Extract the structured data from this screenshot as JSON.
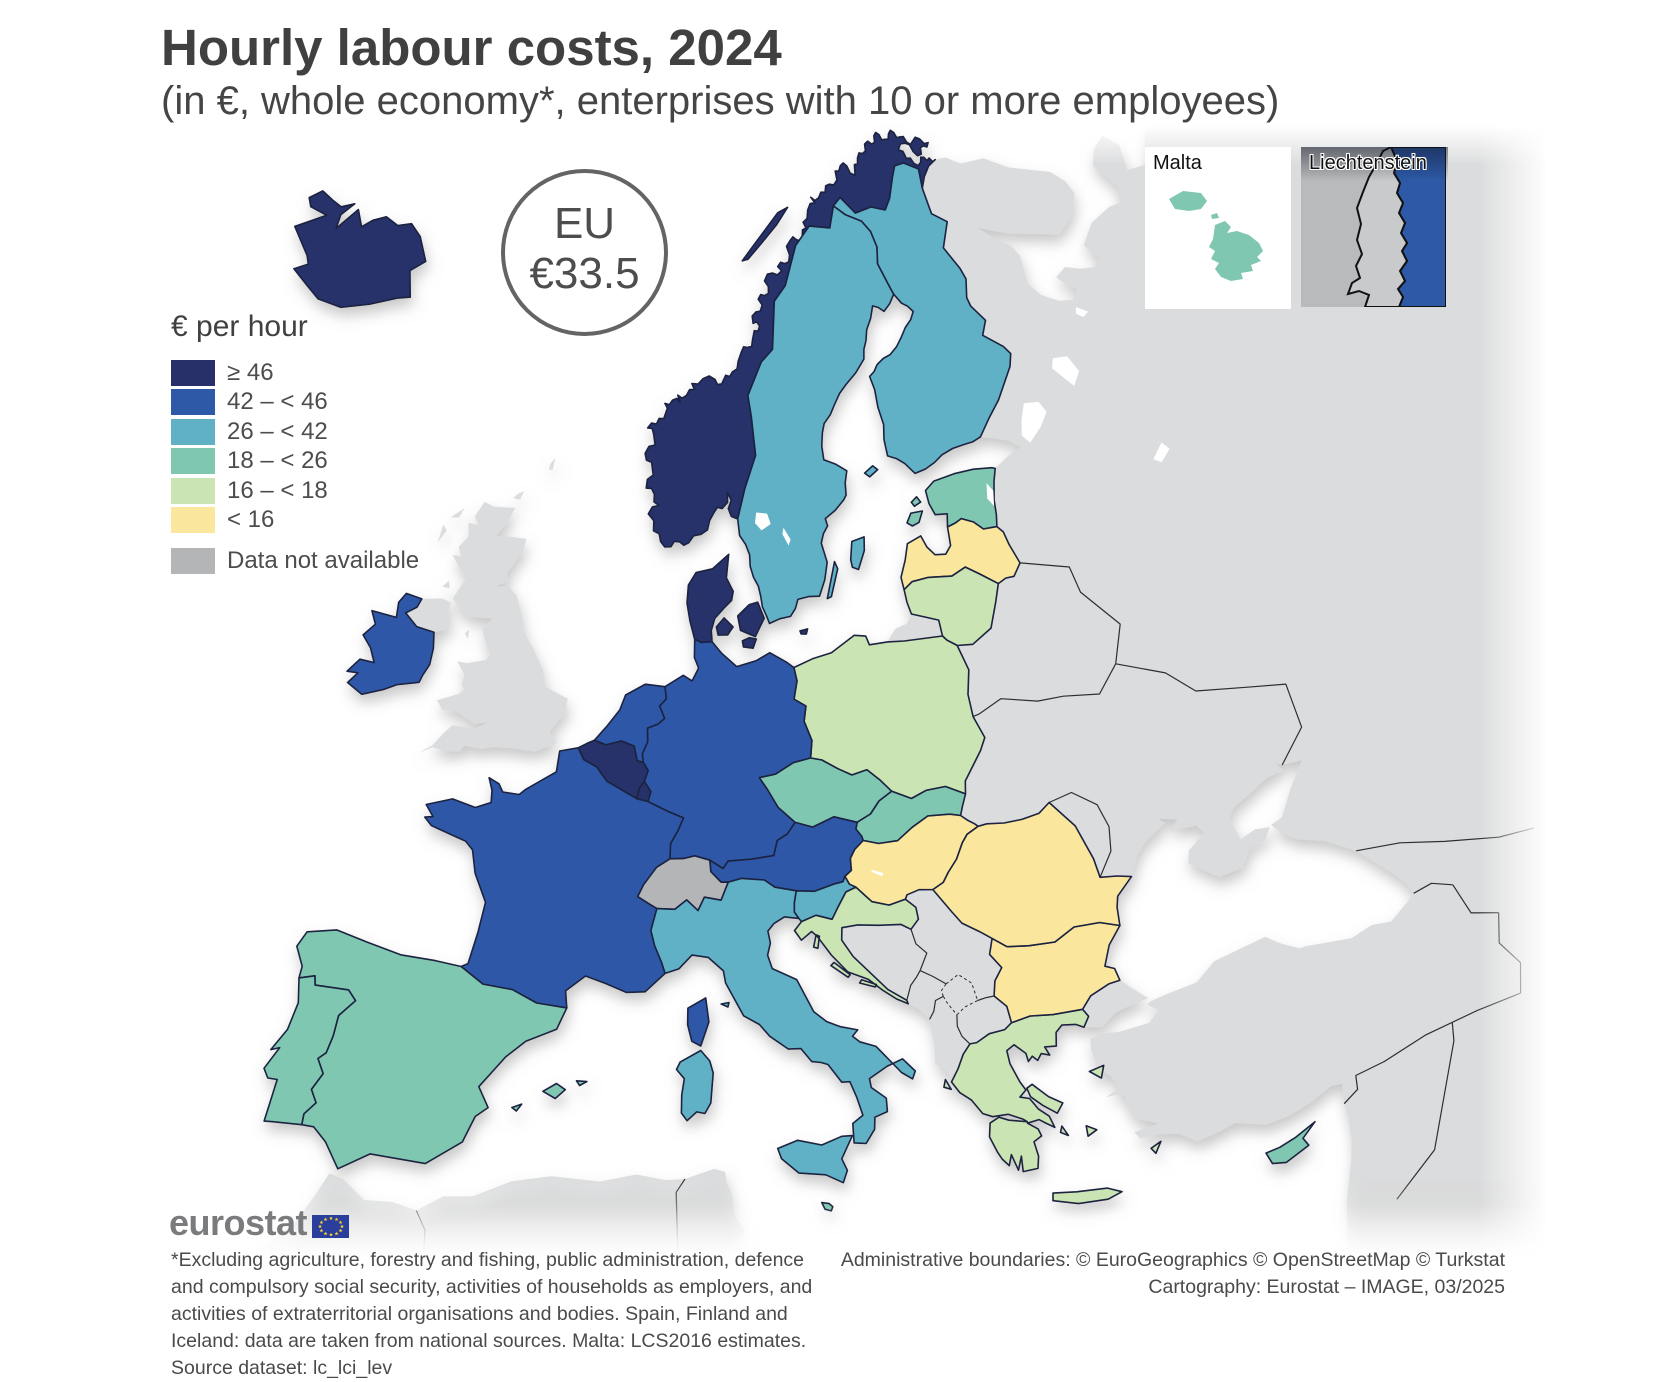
{
  "title": "Hourly labour costs, 2024",
  "subtitle": "(in €, whole economy*, enterprises with 10 or more employees)",
  "eu_badge": {
    "label": "EU",
    "value": "€33.5"
  },
  "legend": {
    "title": "€ per hour",
    "classes": [
      {
        "key": "c1",
        "label": "≥ 46",
        "color": "#273069"
      },
      {
        "key": "c2",
        "label": "42 – < 46",
        "color": "#2d59a7"
      },
      {
        "key": "c3",
        "label": "26 – < 42",
        "color": "#60b1c5"
      },
      {
        "key": "c4",
        "label": "18 – < 26",
        "color": "#80c7b2"
      },
      {
        "key": "c5",
        "label": "16 – < 18",
        "color": "#cbe4b3"
      },
      {
        "key": "c6",
        "label": "< 16",
        "color": "#fae69d"
      },
      {
        "key": "na",
        "label": "Data not available",
        "color": "#b4b5b7"
      }
    ]
  },
  "insets": [
    {
      "label": "Malta",
      "category": "18 – < 26"
    },
    {
      "label": "Liechtenstein",
      "category": "Data not available"
    }
  ],
  "logo": {
    "text": "eurostat"
  },
  "footnote_lines": [
    "*Excluding agriculture, forestry and fishing, public administration, defence",
    "and compulsory social security, activities of households as employers, and",
    "activities of extraterritorial organisations and bodies. Spain, Finland and",
    "Iceland: data are taken from national sources. Malta: LCS2016 estimates.",
    "Source dataset: lc_lci_lev"
  ],
  "credits": [
    "Administrative boundaries: © EuroGeographics © OpenStreetMap © Turkstat",
    "Cartography: Eurostat – IMAGE, 03/2025"
  ],
  "map_colors": {
    "c1": "#273069",
    "c2": "#2d59a7",
    "c3": "#60b1c5",
    "c4": "#80c7b2",
    "c5": "#cbe4b3",
    "c6": "#fae69d",
    "na": "#b4b5b7",
    "non": "#dbdcdd",
    "af": "#dbdcdd"
  },
  "chart_data": {
    "type": "choropleth-map",
    "title": "Hourly labour costs, 2024",
    "unit": "€ per hour",
    "eu_average": 33.5,
    "classes": [
      "≥ 46",
      "42 – < 46",
      "26 – < 42",
      "18 – < 26",
      "16 – < 18",
      "< 16",
      "Data not available"
    ],
    "countries": [
      {
        "name": "Belgium",
        "code": "BE",
        "category": "≥ 46"
      },
      {
        "name": "Bulgaria",
        "code": "BG",
        "category": "< 16"
      },
      {
        "name": "Czechia",
        "code": "CZ",
        "category": "18 – < 26"
      },
      {
        "name": "Denmark",
        "code": "DK",
        "category": "≥ 46"
      },
      {
        "name": "Germany",
        "code": "DE",
        "category": "42 – < 46"
      },
      {
        "name": "Estonia",
        "code": "EE",
        "category": "18 – < 26"
      },
      {
        "name": "Ireland",
        "code": "IE",
        "category": "42 – < 46"
      },
      {
        "name": "Greece",
        "code": "GR",
        "category": "16 – < 18"
      },
      {
        "name": "Spain",
        "code": "ES",
        "category": "18 – < 26"
      },
      {
        "name": "France",
        "code": "FR",
        "category": "42 – < 46"
      },
      {
        "name": "Croatia",
        "code": "HR",
        "category": "16 – < 18"
      },
      {
        "name": "Italy",
        "code": "IT",
        "category": "26 – < 42"
      },
      {
        "name": "Cyprus",
        "code": "CY",
        "category": "18 – < 26"
      },
      {
        "name": "Latvia",
        "code": "LV",
        "category": "< 16"
      },
      {
        "name": "Lithuania",
        "code": "LT",
        "category": "16 – < 18"
      },
      {
        "name": "Luxembourg",
        "code": "LU",
        "category": "≥ 46"
      },
      {
        "name": "Hungary",
        "code": "HU",
        "category": "< 16"
      },
      {
        "name": "Malta",
        "code": "MT",
        "category": "18 – < 26"
      },
      {
        "name": "Netherlands",
        "code": "NL",
        "category": "42 – < 46"
      },
      {
        "name": "Austria",
        "code": "AT",
        "category": "42 – < 46"
      },
      {
        "name": "Poland",
        "code": "PL",
        "category": "16 – < 18"
      },
      {
        "name": "Portugal",
        "code": "PT",
        "category": "18 – < 26"
      },
      {
        "name": "Romania",
        "code": "RO",
        "category": "< 16"
      },
      {
        "name": "Slovenia",
        "code": "SI",
        "category": "26 – < 42"
      },
      {
        "name": "Slovakia",
        "code": "SK",
        "category": "18 – < 26"
      },
      {
        "name": "Finland",
        "code": "FI",
        "category": "26 – < 42"
      },
      {
        "name": "Sweden",
        "code": "SE",
        "category": "26 – < 42"
      },
      {
        "name": "Iceland",
        "code": "IS",
        "category": "≥ 46"
      },
      {
        "name": "Norway",
        "code": "NO",
        "category": "≥ 46"
      },
      {
        "name": "Switzerland",
        "code": "CH",
        "category": "Data not available"
      },
      {
        "name": "Liechtenstein",
        "code": "LI",
        "category": "Data not available"
      }
    ],
    "not_covered": [
      "United Kingdom",
      "Russia",
      "Belarus",
      "Ukraine",
      "Moldova",
      "Turkey",
      "Bosnia and Herzegovina",
      "Serbia",
      "Montenegro",
      "North Macedonia",
      "Albania",
      "Kosovo"
    ]
  }
}
